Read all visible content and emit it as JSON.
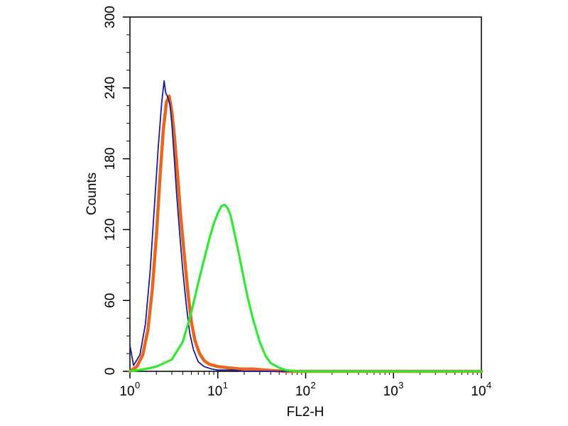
{
  "chart_data": {
    "type": "line",
    "title": "",
    "xlabel": "FL2-H",
    "ylabel": "Counts",
    "x_scale": "log",
    "xlim": [
      1,
      10000
    ],
    "ylim": [
      0,
      300
    ],
    "x_ticks": [
      {
        "base": "10",
        "exp": "0",
        "value": 1
      },
      {
        "base": "10",
        "exp": "1",
        "value": 10
      },
      {
        "base": "10",
        "exp": "2",
        "value": 100
      },
      {
        "base": "10",
        "exp": "3",
        "value": 1000
      },
      {
        "base": "10",
        "exp": "4",
        "value": 10000
      }
    ],
    "y_ticks": [
      "0",
      "60",
      "120",
      "180",
      "240",
      "300"
    ],
    "y_tick_values": [
      0,
      60,
      120,
      180,
      240,
      300
    ],
    "grid": false,
    "legend": "none",
    "series": [
      {
        "color": "#1a1aa0",
        "x": [
          1.0,
          1.1,
          1.3,
          1.5,
          1.7,
          1.9,
          2.1,
          2.3,
          2.45,
          2.55,
          2.7,
          2.85,
          3.0,
          3.2,
          3.4,
          3.7,
          4.0,
          4.4,
          4.8,
          5.3,
          6.0,
          7.0,
          8.5,
          10,
          15,
          20,
          30,
          50,
          100,
          1000,
          10000
        ],
        "y": [
          22,
          5,
          14,
          40,
          85,
          140,
          190,
          228,
          246,
          236,
          232,
          226,
          210,
          180,
          150,
          115,
          85,
          55,
          32,
          18,
          8,
          4,
          2,
          1,
          1,
          0,
          0,
          0,
          0,
          0,
          0
        ]
      },
      {
        "color": "#e8661e",
        "x": [
          1.0,
          1.2,
          1.4,
          1.6,
          1.8,
          2.0,
          2.2,
          2.4,
          2.6,
          2.8,
          3.0,
          3.2,
          3.5,
          3.8,
          4.2,
          4.6,
          5.0,
          5.5,
          6.2,
          7.0,
          8.0,
          10,
          13,
          18,
          25,
          35,
          60,
          100,
          1000,
          10000
        ],
        "y": [
          0,
          4,
          14,
          35,
          70,
          115,
          165,
          205,
          228,
          233,
          220,
          200,
          165,
          130,
          95,
          65,
          42,
          26,
          15,
          9,
          6,
          4,
          3,
          2,
          2,
          1,
          0,
          0,
          0,
          0
        ]
      },
      {
        "color": "#33e833",
        "x": [
          1.0,
          1.5,
          2.0,
          3.0,
          4.0,
          5.0,
          6.0,
          7.0,
          8.0,
          9.0,
          10,
          11,
          12,
          13,
          14,
          15,
          17,
          19,
          22,
          25,
          30,
          35,
          40,
          50,
          60,
          80,
          100,
          200,
          1000,
          10000
        ],
        "y": [
          0,
          2,
          4,
          10,
          25,
          50,
          75,
          95,
          112,
          125,
          134,
          140,
          141,
          138,
          132,
          122,
          103,
          85,
          62,
          45,
          25,
          13,
          7,
          3,
          1,
          0,
          0,
          0,
          0,
          0
        ]
      }
    ]
  }
}
